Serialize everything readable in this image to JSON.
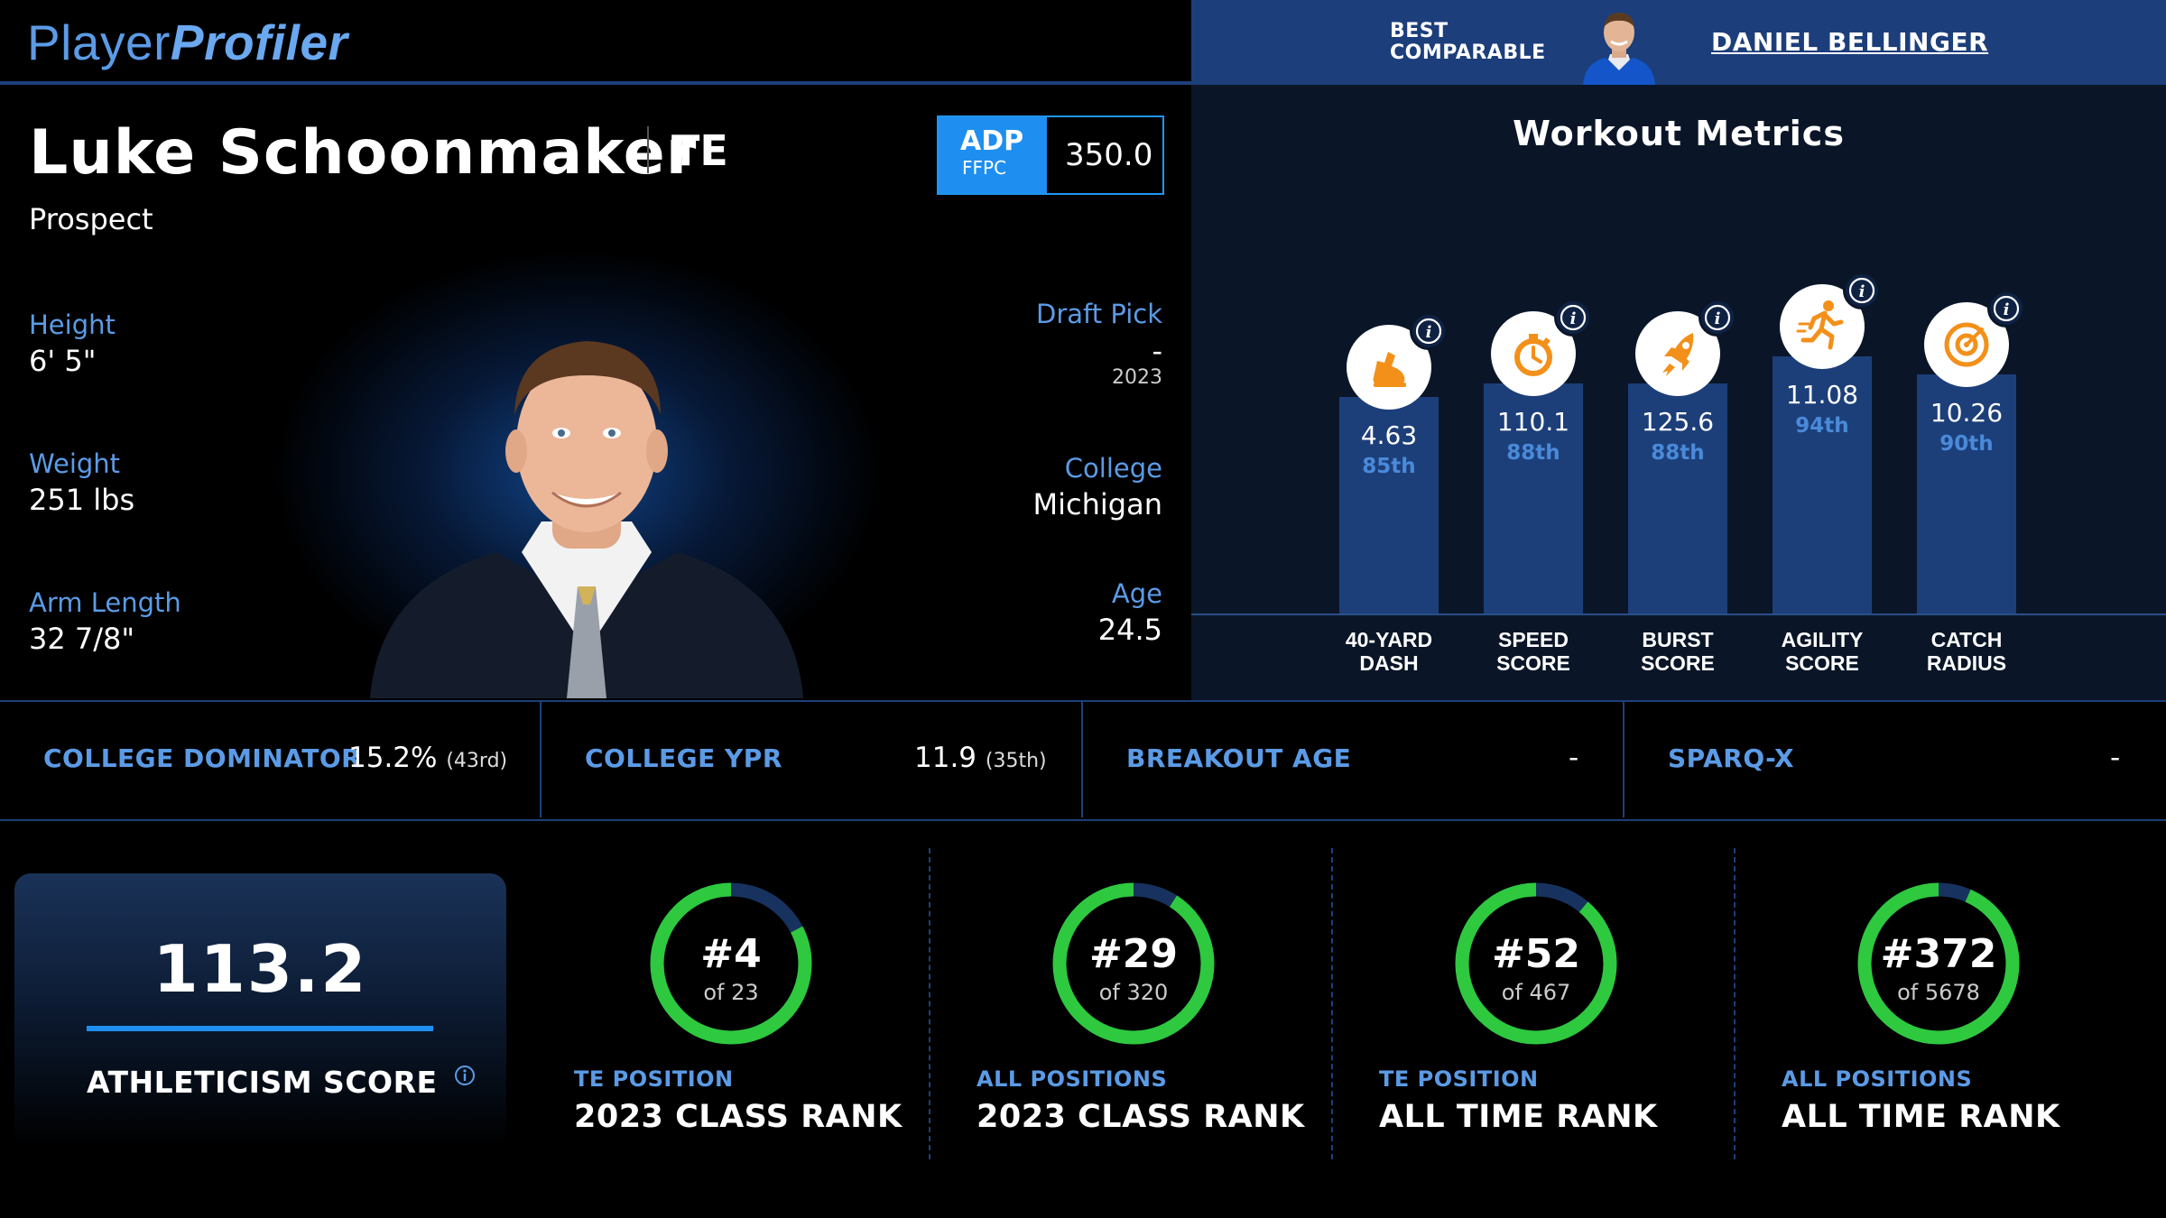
{
  "header": {
    "logo_part1": "Player",
    "logo_part2": "Profiler",
    "comparable_label_line1": "BEST",
    "comparable_label_line2": "COMPARABLE",
    "comparable_name": "DANIEL BELLINGER"
  },
  "player": {
    "name": "Luke Schoonmaker",
    "position": "TE",
    "status": "Prospect",
    "adp_label": "ADP",
    "adp_source": "FFPC",
    "adp_value": "350.0",
    "height_label": "Height",
    "height": "6' 5\"",
    "weight_label": "Weight",
    "weight": "251 lbs",
    "arm_label": "Arm Length",
    "arm": "32 7/8\"",
    "draft_label": "Draft Pick",
    "draft_pick": "-",
    "draft_year": "2023",
    "college_label": "College",
    "college": "Michigan",
    "age_label": "Age",
    "age": "24.5"
  },
  "workout": {
    "title": "Workout Metrics",
    "metrics": [
      {
        "label1": "40-YARD",
        "label2": "DASH",
        "value": "4.63",
        "percentile": "85th",
        "pct": 85,
        "icon": "running-shoe-icon"
      },
      {
        "label1": "SPEED",
        "label2": "SCORE",
        "value": "110.1",
        "percentile": "88th",
        "pct": 88,
        "icon": "stopwatch-icon"
      },
      {
        "label1": "BURST",
        "label2": "SCORE",
        "value": "125.6",
        "percentile": "88th",
        "pct": 88,
        "icon": "rocket-icon"
      },
      {
        "label1": "AGILITY",
        "label2": "SCORE",
        "value": "11.08",
        "percentile": "94th",
        "pct": 94,
        "icon": "runner-icon"
      },
      {
        "label1": "CATCH",
        "label2": "RADIUS",
        "value": "10.26",
        "percentile": "90th",
        "pct": 90,
        "icon": "target-icon"
      }
    ]
  },
  "college_metrics": [
    {
      "label": "COLLEGE DOMINATOR",
      "value": "15.2%",
      "rank": "(43rd)"
    },
    {
      "label": "COLLEGE YPR",
      "value": "11.9",
      "rank": "(35th)"
    },
    {
      "label": "BREAKOUT AGE",
      "value": "-",
      "rank": ""
    },
    {
      "label": "SPARQ-X",
      "value": "-",
      "rank": ""
    }
  ],
  "athleticism": {
    "score": "113.2",
    "label": "ATHLETICISM SCORE"
  },
  "ranks": [
    {
      "rank": "#4",
      "of": "of 23",
      "rank_num": 4,
      "total": 23,
      "sub": "TE POSITION",
      "title": "2023 CLASS RANK"
    },
    {
      "rank": "#29",
      "of": "of 320",
      "rank_num": 29,
      "total": 320,
      "sub": "ALL POSITIONS",
      "title": "2023 CLASS RANK"
    },
    {
      "rank": "#52",
      "of": "of 467",
      "rank_num": 52,
      "total": 467,
      "sub": "TE POSITION",
      "title": "ALL TIME RANK"
    },
    {
      "rank": "#372",
      "of": "of 5678",
      "rank_num": 372,
      "total": 5678,
      "sub": "ALL POSITIONS",
      "title": "ALL TIME RANK"
    }
  ],
  "colors": {
    "accent_blue": "#5b9be6",
    "ring_green": "#2ec93e",
    "ring_track": "#17325e",
    "icon_orange": "#f39019"
  }
}
